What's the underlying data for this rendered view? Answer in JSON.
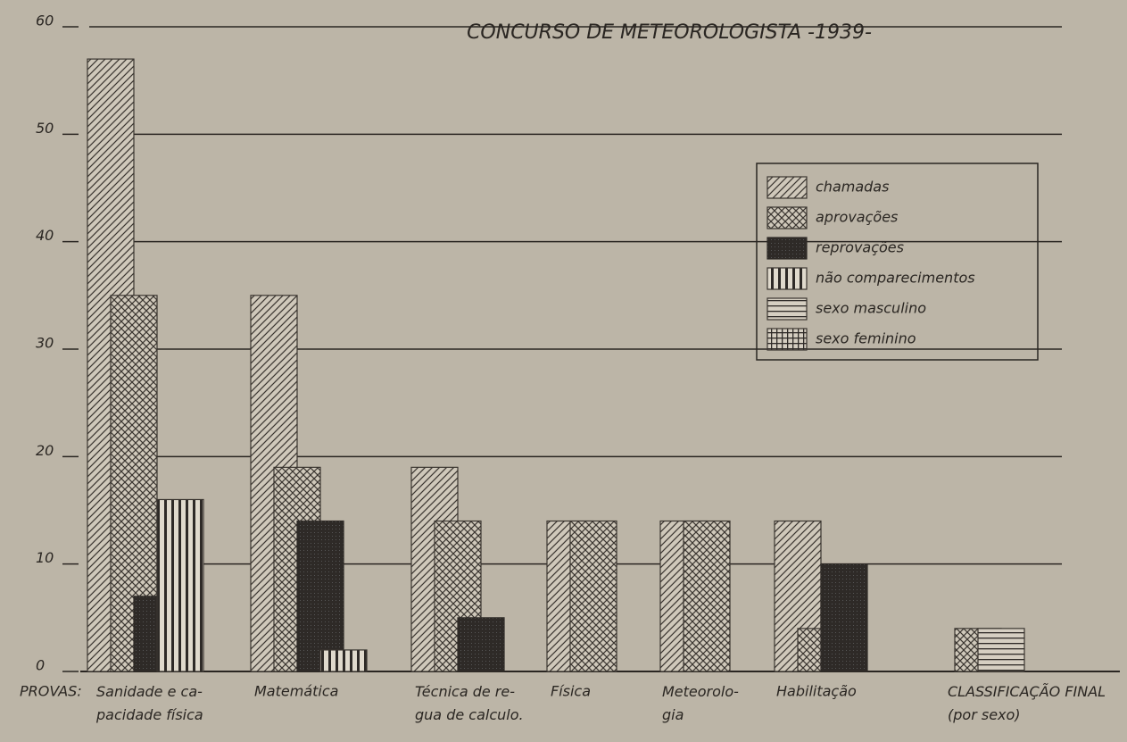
{
  "chart_data": {
    "type": "bar",
    "title": "CONCURSO DE METEOROLOGISTA -1939-",
    "x_label": "PROVAS:",
    "categories": [
      "Sanidade e ca-\npacidade física",
      "Matemática",
      "Técnica de re-\ngua de calculo.",
      "Física",
      "Meteorolo-\ngia",
      "Habilitação",
      "CLASSIFICAÇÃO FINAL\n(por sexo)"
    ],
    "series": [
      {
        "name": "chamadas",
        "color": "#3a3530",
        "values": [
          57,
          35,
          19,
          14,
          14,
          14,
          null
        ]
      },
      {
        "name": "aprovações",
        "color": "#3a3530",
        "values": [
          35,
          19,
          14,
          14,
          14,
          4,
          4
        ]
      },
      {
        "name": "reprovações",
        "color": "#2e2a27",
        "values": [
          7,
          14,
          5,
          null,
          null,
          10,
          null
        ]
      },
      {
        "name": "não comparecimentos",
        "color": "#3a3530",
        "values": [
          16,
          2,
          null,
          null,
          null,
          null,
          null
        ]
      },
      {
        "name": "sexo masculino",
        "color": "#3a3530",
        "values": [
          null,
          null,
          null,
          null,
          null,
          null,
          4
        ]
      },
      {
        "name": "sexo feminino",
        "color": "#3a3530",
        "values": [
          null,
          null,
          null,
          null,
          null,
          null,
          null
        ]
      }
    ],
    "ylim": [
      0,
      60
    ],
    "yticks": [
      0,
      10,
      20,
      30,
      40,
      50,
      60
    ],
    "grid": true,
    "legend": "upper right"
  }
}
